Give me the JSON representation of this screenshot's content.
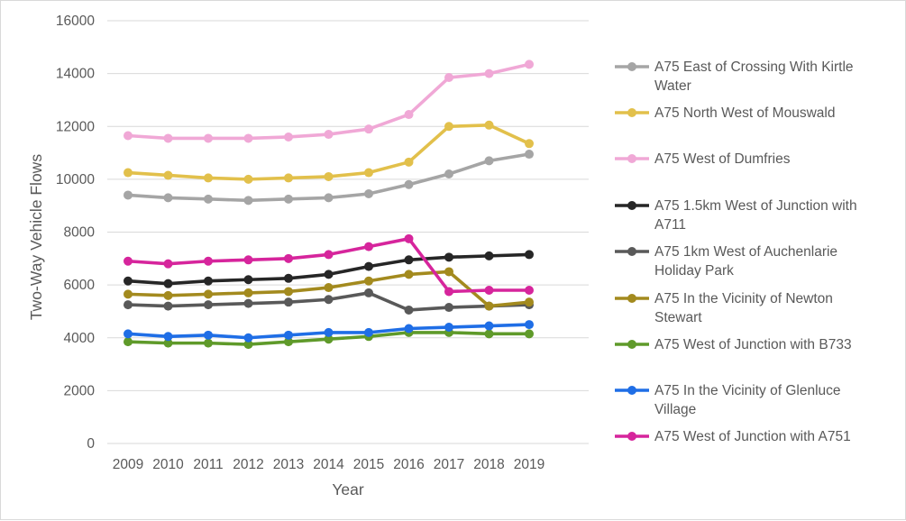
{
  "chart_data": {
    "type": "line",
    "title": "",
    "xlabel": "Year",
    "ylabel": "Two-Way Vehicle Flows",
    "ylim": [
      0,
      16000
    ],
    "ytick_step": 2000,
    "yticks": [
      "0",
      "2000",
      "4000",
      "6000",
      "8000",
      "10000",
      "12000",
      "14000",
      "16000"
    ],
    "grid": true,
    "legend_position": "right",
    "categories": [
      "2009",
      "2010",
      "2011",
      "2012",
      "2013",
      "2014",
      "2015",
      "2016",
      "2017",
      "2018",
      "2019"
    ],
    "series": [
      {
        "name": "A75 East of Crossing With Kirtle Water",
        "color": "#a5a5a5",
        "legend_lines": [
          "A75 East of Crossing With Kirtle",
          "Water"
        ],
        "values": [
          9400,
          9300,
          9250,
          9200,
          9250,
          9300,
          9450,
          9800,
          10200,
          10700,
          10950
        ]
      },
      {
        "name": "A75 North West of Mouswald",
        "color": "#e2c04b",
        "legend_lines": [
          "A75 North West of Mouswald"
        ],
        "values": [
          10250,
          10150,
          10050,
          10000,
          10050,
          10100,
          10250,
          10650,
          12000,
          12050,
          11350
        ]
      },
      {
        "name": "A75 West of Dumfries",
        "color": "#f0a8d6",
        "legend_lines": [
          "A75 West of Dumfries"
        ],
        "values": [
          11650,
          11550,
          11550,
          11550,
          11600,
          11700,
          11900,
          12450,
          13850,
          14000,
          14350
        ]
      },
      {
        "name": "A75 1.5km West of Junction with A711",
        "color": "#262626",
        "legend_lines": [
          "A75 1.5km West of Junction with",
          "A711"
        ],
        "values": [
          6150,
          6050,
          6150,
          6200,
          6250,
          6400,
          6700,
          6950,
          7050,
          7100,
          7150
        ]
      },
      {
        "name": "A75 1km West of Auchenlarie Holiday Park",
        "color": "#595959",
        "legend_lines": [
          "A75 1km West of Auchenlarie",
          "Holiday Park"
        ],
        "values": [
          5250,
          5200,
          5250,
          5300,
          5350,
          5450,
          5700,
          5050,
          5150,
          5200,
          5250
        ]
      },
      {
        "name": "A75 In the Vicinity of Newton Stewart",
        "color": "#a38a1e",
        "legend_lines": [
          "A75 In the Vicinity of Newton",
          "Stewart"
        ],
        "values": [
          5650,
          5600,
          5650,
          5700,
          5750,
          5900,
          6150,
          6400,
          6500,
          5200,
          5350
        ]
      },
      {
        "name": "A75 West of Junction with B733",
        "color": "#5f9a2a",
        "legend_lines": [
          "A75 West of Junction with B733"
        ],
        "values": [
          3850,
          3800,
          3800,
          3750,
          3850,
          3950,
          4050,
          4200,
          4200,
          4150,
          4150
        ]
      },
      {
        "name": "A75 In the Vicinity of Glenluce Village",
        "color": "#1f6ee6",
        "legend_lines": [
          "A75 In the Vicinity of Glenluce",
          "Village"
        ],
        "values": [
          4150,
          4050,
          4100,
          4000,
          4100,
          4200,
          4200,
          4350,
          4400,
          4450,
          4500
        ]
      },
      {
        "name": "A75 West of Junction with A751",
        "color": "#d6259c",
        "legend_lines": [
          "A75 West of Junction with A751"
        ],
        "values": [
          6900,
          6800,
          6900,
          6950,
          7000,
          7150,
          7450,
          7750,
          5750,
          5800,
          5800
        ]
      }
    ]
  }
}
